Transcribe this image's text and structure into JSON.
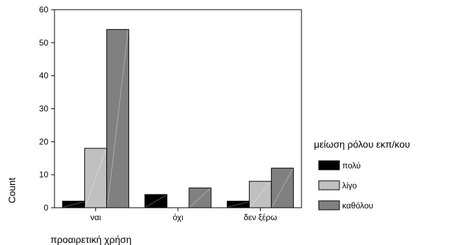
{
  "chart_data": {
    "type": "bar",
    "categories": [
      "ναι",
      "όχι",
      "δεν ξέρω"
    ],
    "series": [
      {
        "name": "πολύ",
        "values": [
          2,
          4,
          2
        ],
        "color": "#000000"
      },
      {
        "name": "λίγο",
        "values": [
          18,
          0,
          8
        ],
        "color": "#c0c0c0"
      },
      {
        "name": "καθόλου",
        "values": [
          54,
          6,
          12
        ],
        "color": "#808080"
      }
    ],
    "xlabel": "προαιρετική χρήση",
    "ylabel": "Count",
    "ylim": [
      0,
      60
    ],
    "yticks": [
      0,
      10,
      20,
      30,
      40,
      50,
      60
    ],
    "legend_title": "μείωση ρόλου εκπ/κου",
    "legend_position": "right",
    "grid": false
  }
}
